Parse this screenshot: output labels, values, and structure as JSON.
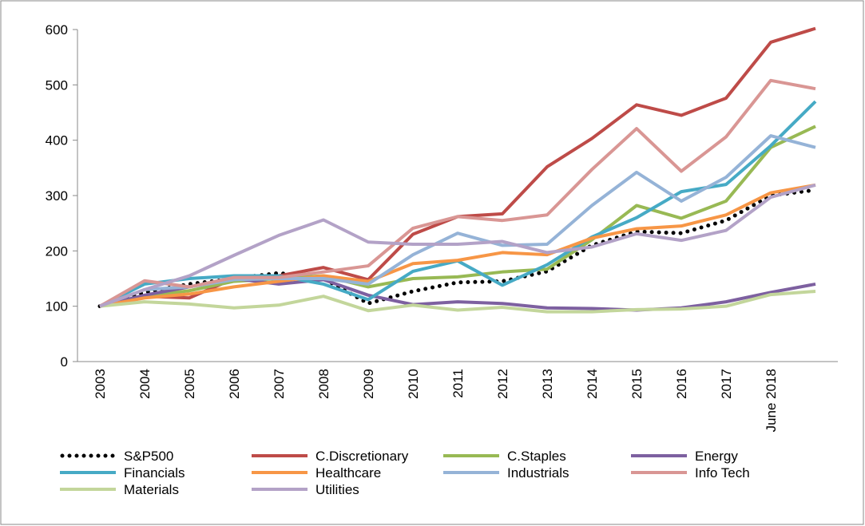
{
  "chart_data": {
    "type": "line",
    "categories": [
      "2003",
      "2004",
      "2005",
      "2006",
      "2007",
      "2008",
      "2009",
      "2010",
      "2011",
      "2012",
      "2013",
      "2014",
      "2015",
      "2016",
      "2017",
      "June 2018",
      null
    ],
    "ylim": [
      0,
      600
    ],
    "yticks": [
      0,
      100,
      200,
      300,
      400,
      500,
      600
    ],
    "series": [
      {
        "name": "S&P500",
        "color": "#000000",
        "dash": "dotted",
        "values": [
          100,
          125,
          140,
          150,
          160,
          150,
          105,
          127,
          143,
          145,
          163,
          210,
          235,
          232,
          255,
          300,
          310
        ]
      },
      {
        "name": "C.Discretionary",
        "color": "#be4b48",
        "values": [
          100,
          118,
          115,
          150,
          155,
          170,
          148,
          230,
          262,
          267,
          352,
          403,
          464,
          445,
          476,
          577,
          602
        ]
      },
      {
        "name": "C.Staples",
        "color": "#98b954",
        "values": [
          100,
          118,
          128,
          145,
          150,
          155,
          135,
          150,
          153,
          162,
          167,
          220,
          282,
          259,
          290,
          387,
          425
        ]
      },
      {
        "name": "Energy",
        "color": "#7d60a0",
        "values": [
          100,
          120,
          135,
          150,
          140,
          148,
          120,
          103,
          108,
          105,
          97,
          96,
          93,
          97,
          108,
          125,
          140
        ]
      },
      {
        "name": "Financials",
        "color": "#46aac5",
        "values": [
          100,
          140,
          150,
          155,
          155,
          140,
          112,
          163,
          182,
          138,
          175,
          225,
          260,
          307,
          320,
          390,
          470
        ]
      },
      {
        "name": "Healthcare",
        "color": "#f79646",
        "values": [
          100,
          115,
          122,
          135,
          145,
          155,
          145,
          177,
          183,
          197,
          193,
          223,
          240,
          245,
          265,
          305,
          319
        ]
      },
      {
        "name": "Industrials",
        "color": "#95b3d7",
        "values": [
          100,
          130,
          135,
          148,
          150,
          150,
          140,
          193,
          232,
          210,
          212,
          282,
          342,
          290,
          333,
          408,
          387
        ]
      },
      {
        "name": "Info Tech",
        "color": "#d99694",
        "values": [
          100,
          146,
          135,
          152,
          152,
          162,
          173,
          241,
          262,
          255,
          265,
          347,
          421,
          344,
          406,
          508,
          493
        ]
      },
      {
        "name": "Materials",
        "color": "#c3d69b",
        "values": [
          100,
          108,
          104,
          97,
          102,
          118,
          92,
          102,
          93,
          98,
          90,
          90,
          94,
          95,
          100,
          121,
          127
        ]
      },
      {
        "name": "Utilities",
        "color": "#b3a2c7",
        "values": [
          100,
          130,
          155,
          192,
          228,
          256,
          216,
          212,
          212,
          217,
          197,
          207,
          231,
          219,
          237,
          297,
          319
        ]
      }
    ]
  }
}
